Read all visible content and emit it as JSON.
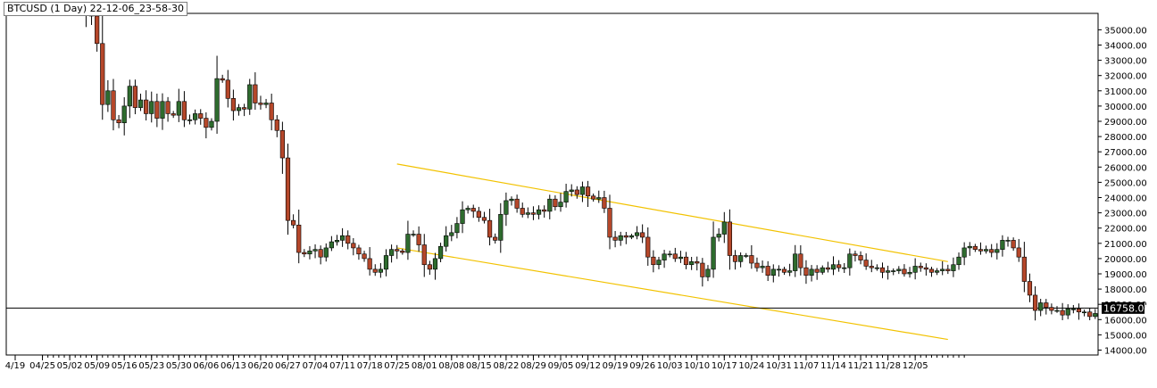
{
  "header": {
    "symbol": "BTCUSD",
    "timeframe": "(1 Day)",
    "timestamp": "22-12-06_23-58-30"
  },
  "current_price_label": "16758.00",
  "chart_data": {
    "type": "candlestick",
    "title": "BTCUSD (1 Day) 22-12-06_23-58-30",
    "ylim": [
      13800,
      36000
    ],
    "y_ticks": [
      14000,
      15000,
      16000,
      17000,
      18000,
      19000,
      20000,
      21000,
      22000,
      23000,
      24000,
      25000,
      26000,
      27000,
      28000,
      29000,
      30000,
      31000,
      32000,
      33000,
      34000,
      35000
    ],
    "x_tick_labels": [
      "4/19",
      "04/25",
      "05/02",
      "05/09",
      "05/16",
      "05/23",
      "05/30",
      "06/06",
      "06/13",
      "06/20",
      "06/27",
      "07/04",
      "07/11",
      "07/18",
      "07/25",
      "08/01",
      "08/08",
      "08/15",
      "08/22",
      "08/29",
      "09/05",
      "09/12",
      "09/19",
      "09/26",
      "10/03",
      "10/10",
      "10/17",
      "10/24",
      "10/31",
      "11/07",
      "11/14",
      "11/21",
      "11/28",
      "12/05"
    ],
    "current_price": 16758,
    "up_color": "#2e6b2e",
    "down_color": "#b5472a",
    "channel_color": "#f2c200",
    "channel_lines": [
      {
        "name": "upper",
        "start": {
          "date": "07/25",
          "price": 26200
        },
        "end": {
          "date": "12/05+3",
          "price": 19800
        }
      },
      {
        "name": "lower",
        "start": {
          "date": "07/25",
          "price": 20700
        },
        "end": {
          "date": "12/05+3",
          "price": 14700
        }
      }
    ],
    "daily_closes": {
      "start_date": "04/30",
      "values": [
        38600,
        37700,
        38500,
        37750,
        39700,
        36500,
        35900,
        34100,
        30100,
        31000,
        29100,
        28900,
        30000,
        31300,
        29900,
        30400,
        29500,
        30300,
        29200,
        30300,
        29500,
        29400,
        30300,
        29100,
        29100,
        29500,
        29200,
        28600,
        29000,
        31800,
        31700,
        30500,
        29700,
        29900,
        29800,
        31400,
        30200,
        30100,
        30200,
        29100,
        28400,
        26600,
        22500,
        22200,
        20400,
        20300,
        20500,
        20600,
        20100,
        20700,
        21100,
        21200,
        21500,
        21000,
        20700,
        20300,
        20000,
        19300,
        19100,
        19300,
        20200,
        20600,
        20500,
        20400,
        21600,
        21600,
        20900,
        19600,
        19300,
        20000,
        20800,
        21500,
        21700,
        22300,
        23200,
        23300,
        23100,
        22700,
        22500,
        21400,
        21200,
        22900,
        23800,
        23900,
        23300,
        22900,
        23000,
        22900,
        23200,
        23100,
        23900,
        23400,
        23700,
        24400,
        24500,
        24200,
        24700,
        24100,
        23900,
        24000,
        23300,
        21400,
        21200,
        21500,
        21400,
        21500,
        21700,
        21400,
        20100,
        19600,
        19900,
        20300,
        20300,
        20000,
        20100,
        19600,
        19800,
        19700,
        18800,
        19300,
        21400,
        21600,
        22400,
        20200,
        19800,
        20200,
        20200,
        19700,
        19400,
        19500,
        18900,
        19300,
        19300,
        19100,
        19200,
        20300,
        19400,
        18900,
        19300,
        19100,
        19400,
        19300,
        19600,
        19400,
        19400,
        20300,
        20200,
        19900,
        19500,
        19400,
        19400,
        19100,
        19200,
        19200,
        19300,
        19000,
        19100,
        19500,
        19400,
        19300,
        19100,
        19200,
        19300,
        19200,
        19600,
        20100,
        20700,
        20800,
        20600,
        20500,
        20600,
        20400,
        20600,
        21200,
        21200,
        20700,
        20100,
        18500,
        17600,
        16600,
        17100,
        16800,
        16600,
        16600,
        16300,
        16700,
        16700,
        16500,
        16500,
        16200,
        16400,
        15800,
        16200,
        16600,
        16500,
        16400,
        16500,
        16400,
        16200,
        16400,
        17000,
        16900,
        17100,
        17000,
        17100,
        17200,
        17100,
        16760
      ]
    }
  }
}
